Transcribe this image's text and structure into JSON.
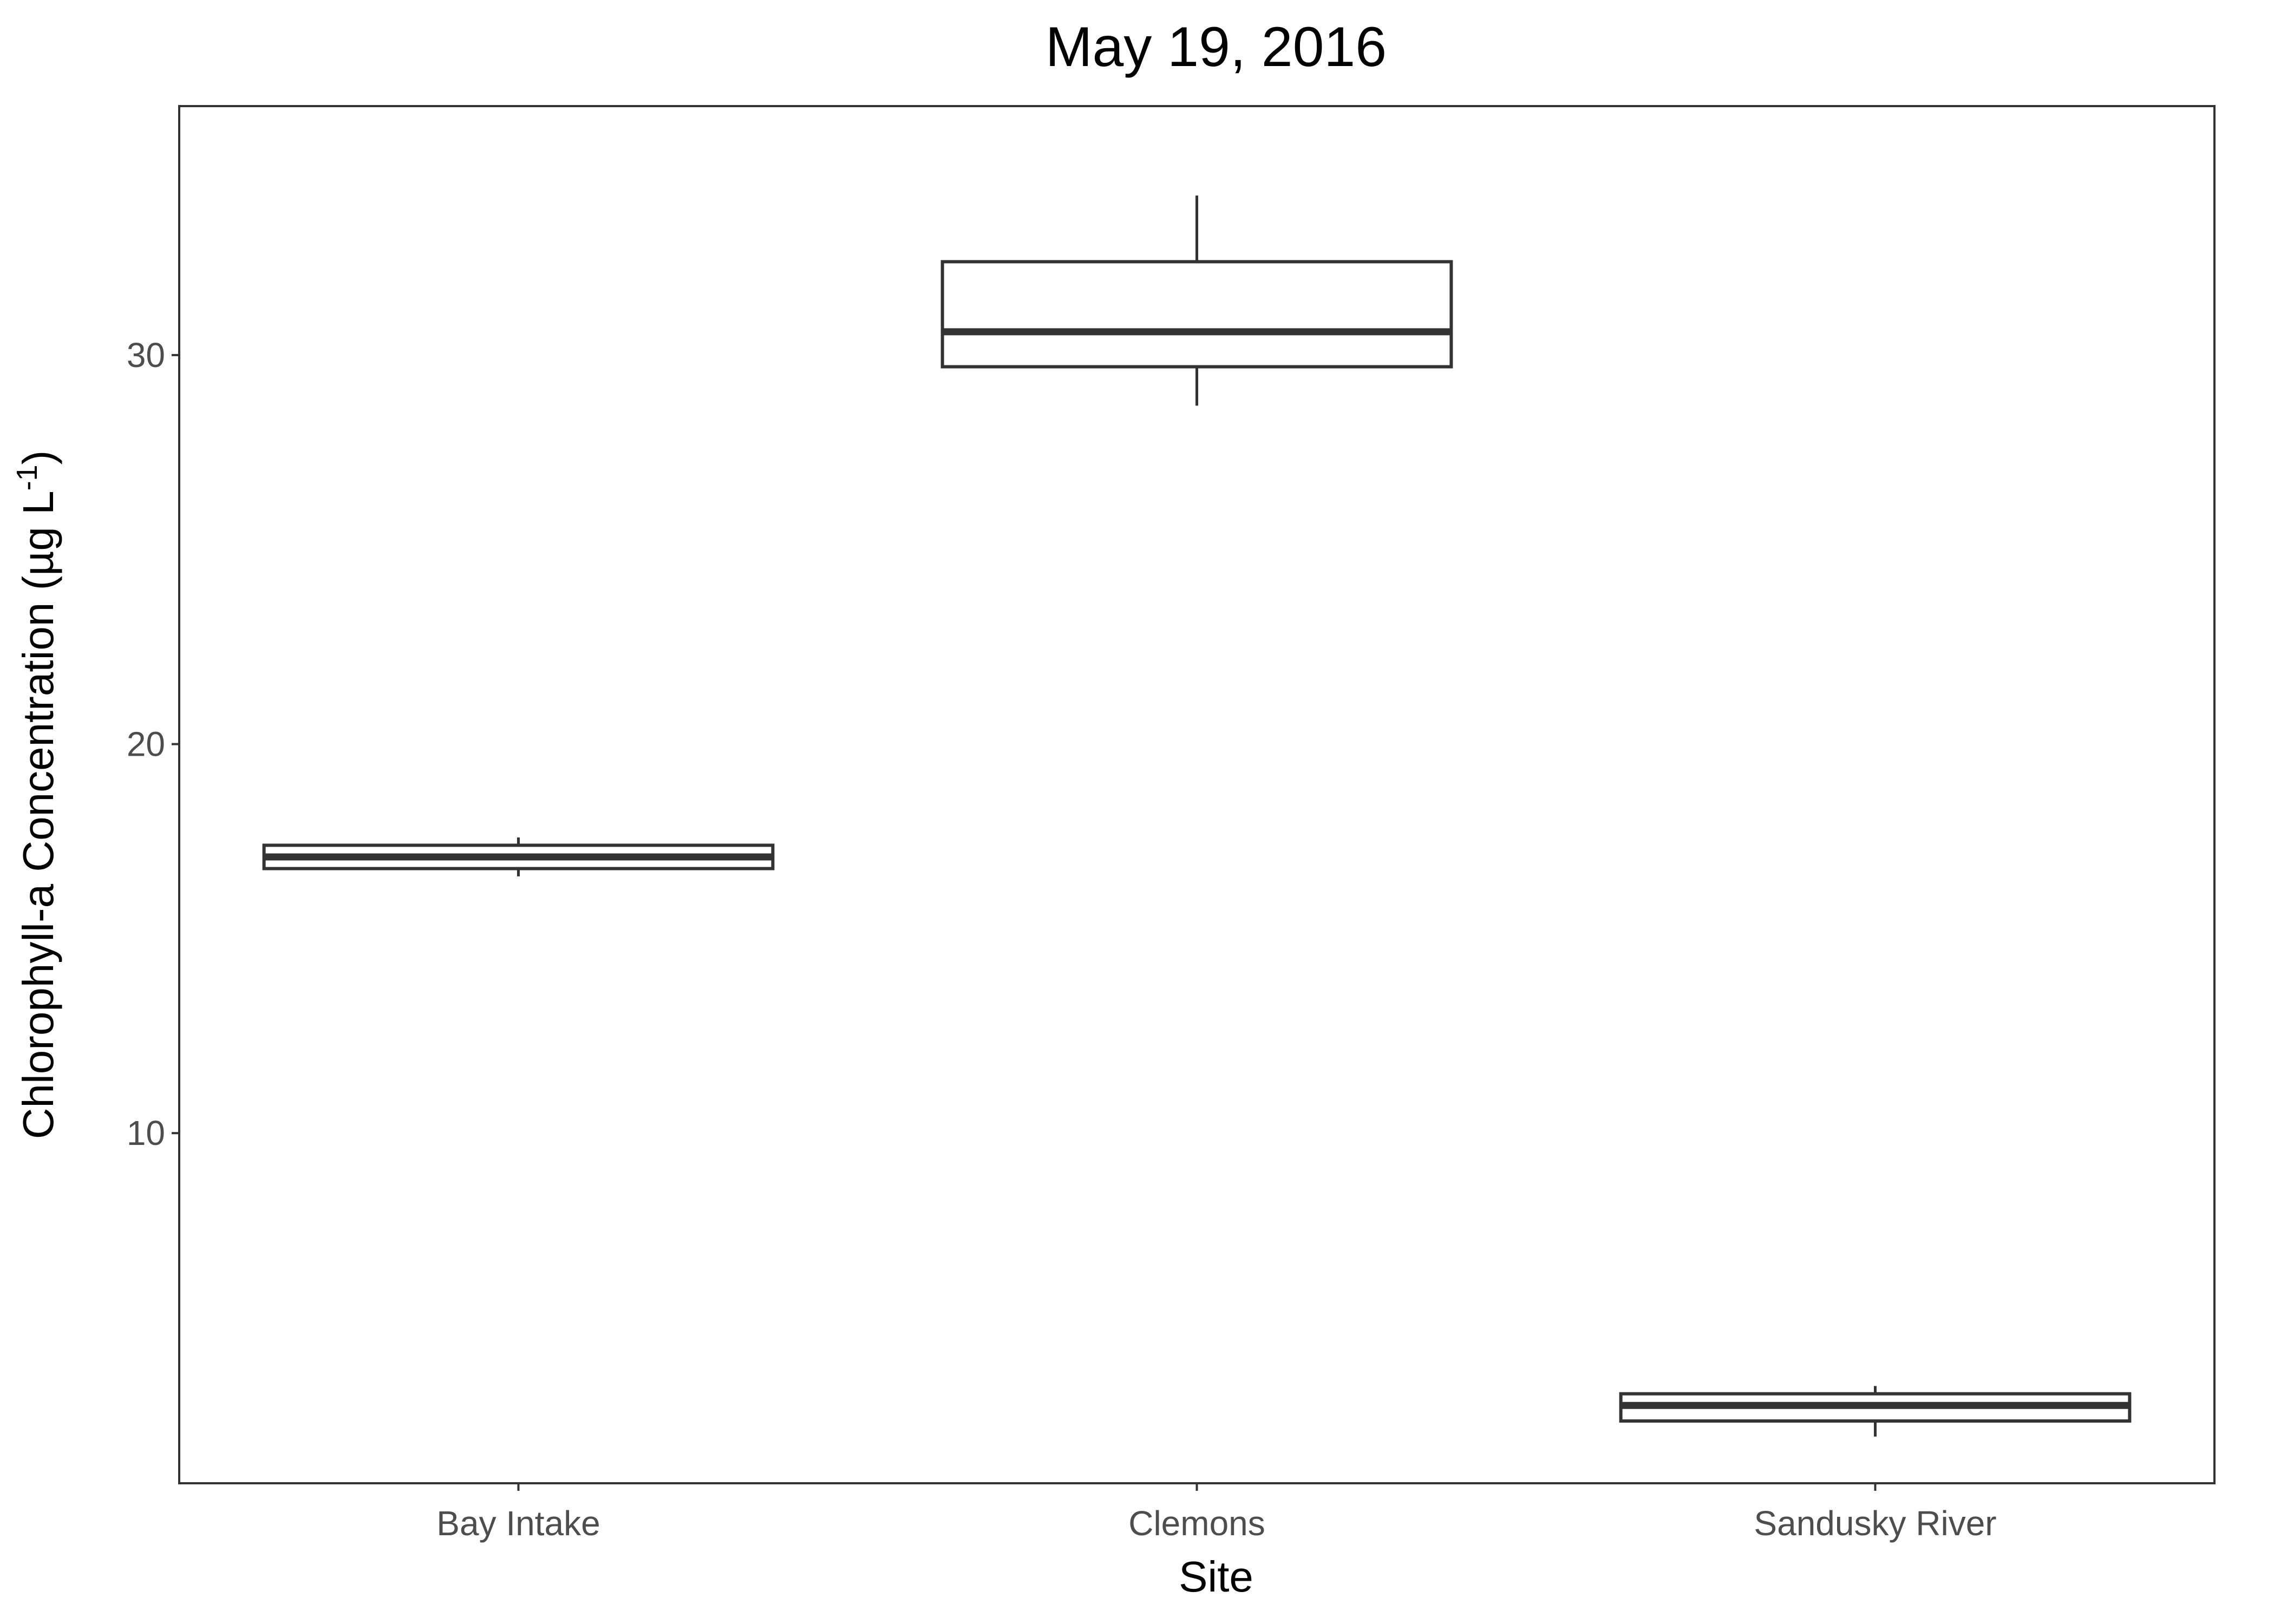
{
  "chart_data": {
    "type": "boxplot",
    "title": "May 19, 2016",
    "xlabel": "Site",
    "ylabel": "Chlorophyll-a Concentration (µg L",
    "ylabel_superscript": "-1",
    "ylabel_close": ")",
    "ylim": [
      1.0,
      36.4
    ],
    "yticks": [
      10,
      20,
      30
    ],
    "grid": false,
    "categories": [
      "Bay Intake",
      "Clemons",
      "Sandusky River"
    ],
    "boxes": [
      {
        "category": "Bay Intake",
        "whisker_low": 16.6,
        "q1": 16.8,
        "median": 17.1,
        "q3": 17.4,
        "whisker_high": 17.6
      },
      {
        "category": "Clemons",
        "whisker_low": 28.7,
        "q1": 29.7,
        "median": 30.6,
        "q3": 32.4,
        "whisker_high": 34.1
      },
      {
        "category": "Sandusky River",
        "whisker_low": 2.2,
        "q1": 2.6,
        "median": 3.0,
        "q3": 3.3,
        "whisker_high": 3.5
      }
    ],
    "colors": {
      "box_stroke": "#333333",
      "panel_border": "#333333",
      "tick_label": "#4d4d4d",
      "text": "#000000",
      "background": "#ffffff"
    }
  }
}
